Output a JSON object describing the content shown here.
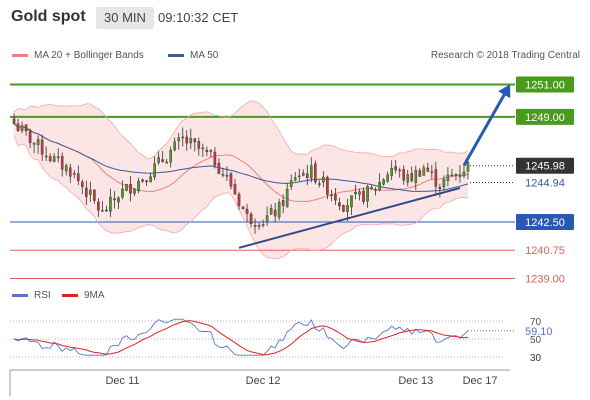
{
  "header": {
    "title": "Gold spot",
    "timeframe": "30 MIN",
    "time": "09:10:32 CET"
  },
  "legend": {
    "ma20_label": "MA 20 + Bollinger Bands",
    "ma50_label": "MA 50",
    "credit": "Research © 2018 Trading Central",
    "ma20_color": "#f08080",
    "ma50_color": "#3a5a98"
  },
  "rsi_legend": {
    "rsi_label": "RSI",
    "ma_label": "9MA",
    "rsi_color": "#5577cc",
    "ma_color": "#dd2222"
  },
  "chart_data": [
    {
      "type": "candlestick",
      "title": "Gold spot",
      "ylim": [
        1238.6,
        1251.9
      ],
      "x_ticks": [
        "Dec 11",
        "Dec 12",
        "Dec 13",
        "Dec 17"
      ],
      "grid": false,
      "levels": [
        {
          "value": 1251.0,
          "label": "1251.00",
          "color": "#4a9a1c",
          "style": "resistance"
        },
        {
          "value": 1249.0,
          "label": "1249.00",
          "color": "#4a9a1c",
          "style": "resistance"
        },
        {
          "value": 1245.98,
          "label": "1245.98",
          "color": "#333333",
          "style": "last"
        },
        {
          "value": 1244.94,
          "label": "1244.94",
          "color": "#3a5a98",
          "style": "ma50"
        },
        {
          "value": 1242.5,
          "label": "1242.50",
          "color": "#2a5ab0",
          "style": "pivot"
        },
        {
          "value": 1240.75,
          "label": "1240.75",
          "color": "#e06060",
          "style": "support"
        },
        {
          "value": 1239.0,
          "label": "1239.00",
          "color": "#e06060",
          "style": "support"
        }
      ],
      "trendline": {
        "from": {
          "bar": 56,
          "value": 1240.9
        },
        "to": {
          "bar": 111,
          "value": 1244.6
        }
      },
      "forecast_arrow": {
        "from": {
          "bar": 112,
          "value": 1246.0
        },
        "to": {
          "bar": 123,
          "value": 1250.8
        }
      },
      "bars": 114
    },
    {
      "type": "line",
      "title": "RSI",
      "ylim": [
        20,
        80
      ],
      "y_ticks": [
        70,
        50,
        30
      ],
      "last_value": "59.10",
      "series": [
        {
          "name": "RSI",
          "color": "#5577cc"
        },
        {
          "name": "9MA",
          "color": "#dd2222"
        }
      ]
    }
  ]
}
